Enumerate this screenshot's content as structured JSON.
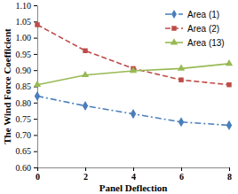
{
  "chart_data": {
    "type": "line",
    "x_label": "Panel Deflection",
    "y_label": "The Wind Force Coefficient",
    "x": [
      0,
      2,
      4,
      6,
      8
    ],
    "xlim": [
      0,
      8
    ],
    "xticks": [
      0,
      2,
      4,
      6,
      8
    ],
    "ylim": [
      0.6,
      1.1
    ],
    "yticks": [
      {
        "value": 0.6,
        "label": "0.60"
      },
      {
        "value": 0.65,
        "label": "0.65"
      },
      {
        "value": 0.7,
        "label": "0.70"
      },
      {
        "value": 0.75,
        "label": "0.75"
      },
      {
        "value": 0.8,
        "label": "0.80"
      },
      {
        "value": 0.85,
        "label": "0.85"
      },
      {
        "value": 0.9,
        "label": "0.90"
      },
      {
        "value": 0.95,
        "label": "0.95"
      },
      {
        "value": 1.0,
        "label": "1.00"
      },
      {
        "value": 1.05,
        "label": "1.05"
      },
      {
        "value": 1.1,
        "label": "1.10"
      }
    ],
    "grid": false,
    "legend": "upper right",
    "series": [
      {
        "name": "Area (1)",
        "color": "#4a7ebb",
        "marker": "diamond",
        "line_style": "dashdot",
        "values": [
          0.82,
          0.79,
          0.765,
          0.74,
          0.73
        ]
      },
      {
        "name": "Area (2)",
        "color": "#be4b48",
        "marker": "square",
        "line_style": "dashed",
        "values": [
          1.04,
          0.96,
          0.905,
          0.87,
          0.855
        ]
      },
      {
        "name": "Area (13)",
        "color": "#98b954",
        "marker": "triangle",
        "line_style": "solid",
        "values": [
          0.855,
          0.885,
          0.898,
          0.905,
          0.92
        ]
      }
    ]
  }
}
